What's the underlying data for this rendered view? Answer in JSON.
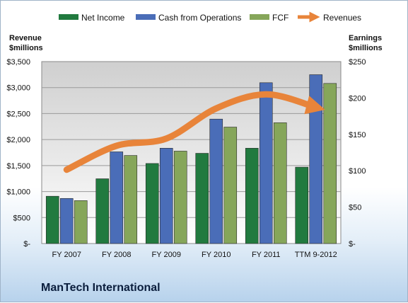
{
  "chart_data": {
    "type": "bar",
    "company": "ManTech International",
    "categories": [
      "FY 2007",
      "FY 2008",
      "FY 2009",
      "FY 2010",
      "FY 2011",
      "TTM 9-2012"
    ],
    "series": [
      {
        "name": "Net Income",
        "axis": "right",
        "color": "#217a3f",
        "values": [
          65,
          89,
          110,
          124,
          131,
          105
        ]
      },
      {
        "name": "Cash from Operations",
        "axis": "right",
        "color": "#4a6db8",
        "values": [
          62,
          126,
          131,
          171,
          221,
          232
        ]
      },
      {
        "name": "FCF",
        "axis": "right",
        "color": "#86a65a",
        "values": [
          59,
          121,
          127,
          160,
          166,
          220
        ]
      },
      {
        "name": "Revenues",
        "type": "line",
        "axis": "left",
        "color": "#e8843a",
        "values": [
          1420,
          1880,
          2020,
          2600,
          2870,
          2620
        ]
      }
    ],
    "left_axis": {
      "title_line1": "Revenue",
      "title_line2": "$millions",
      "ylim": [
        0,
        3500
      ],
      "ticks": [
        0,
        500,
        1000,
        1500,
        2000,
        2500,
        3000,
        3500
      ],
      "tick_labels": [
        "$-",
        "$500",
        "$1,000",
        "$1,500",
        "$2,000",
        "$2,500",
        "$3,000",
        "$3,500"
      ]
    },
    "right_axis": {
      "title_line1": "Earnings",
      "title_line2": "$millions",
      "ylim": [
        0,
        250
      ],
      "ticks": [
        0,
        50,
        100,
        150,
        200,
        250
      ],
      "tick_labels": [
        "$-",
        "$50",
        "$100",
        "$150",
        "$200",
        "$250"
      ]
    },
    "legend_position": "top",
    "grid": true
  }
}
